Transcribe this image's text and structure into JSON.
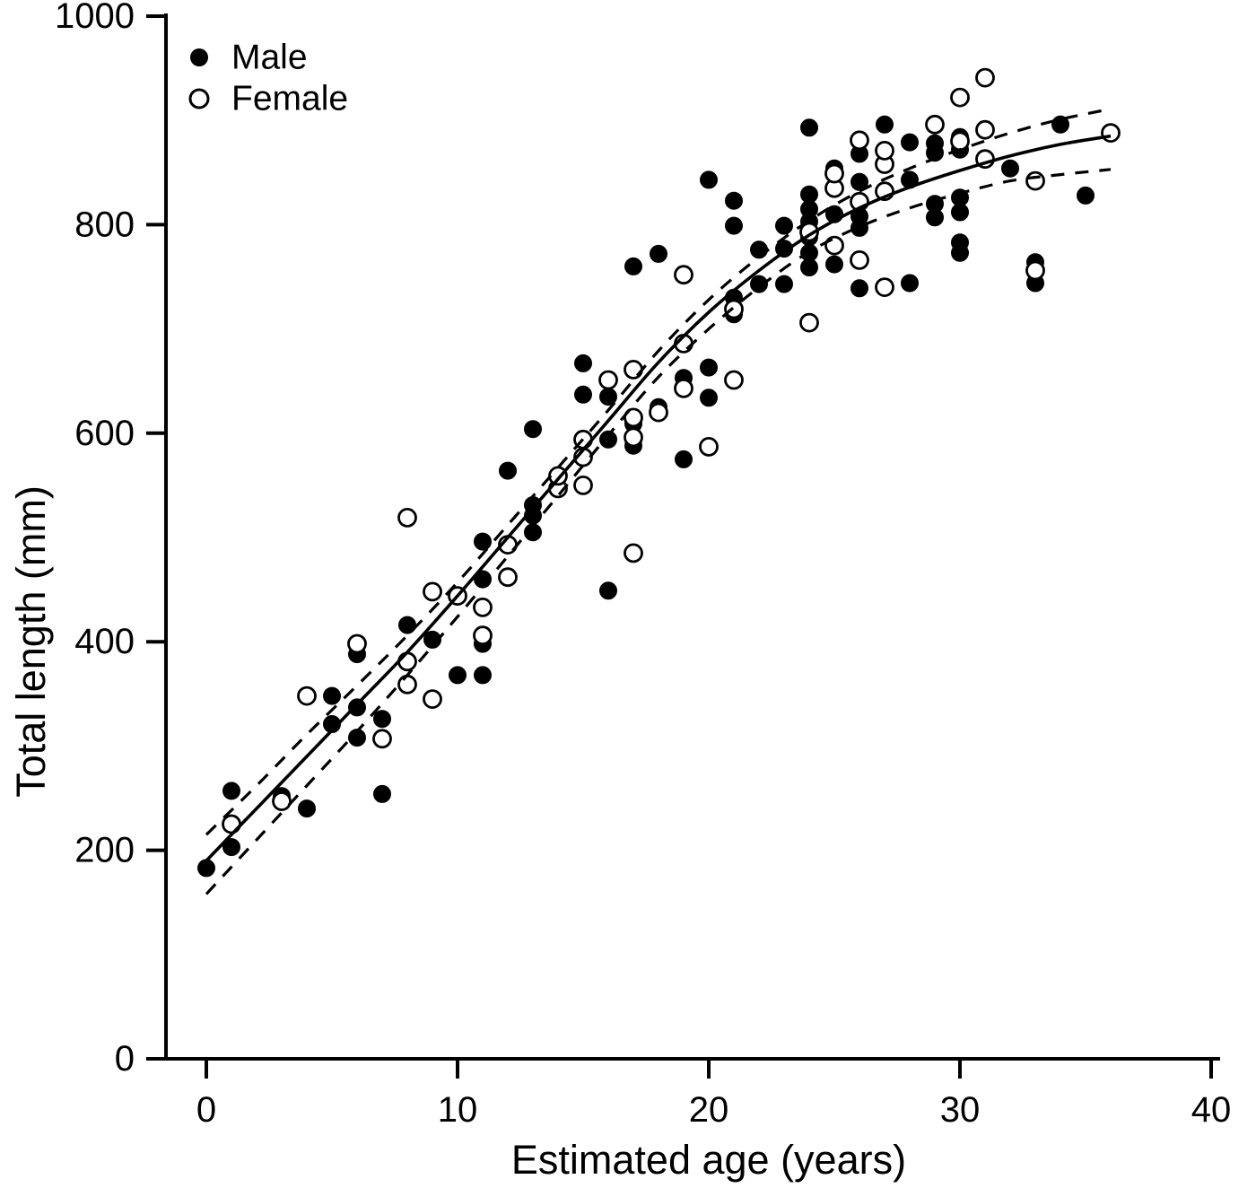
{
  "figure": {
    "background": "#ffffff",
    "ink": "#000000"
  },
  "legend": {
    "items": [
      {
        "label": "Male",
        "marker": "filled-circle"
      },
      {
        "label": "Female",
        "marker": "open-circle"
      }
    ]
  },
  "axes": {
    "x": {
      "label": "Estimated age (years)",
      "ticks": [
        "0",
        "10",
        "20",
        "30",
        "40"
      ],
      "range": [
        0,
        40
      ]
    },
    "y": {
      "label": "Total length (mm)",
      "ticks": [
        "0",
        "200",
        "400",
        "600",
        "800",
        "1000"
      ],
      "range": [
        0,
        1000
      ]
    }
  },
  "chart_data": {
    "type": "scatter",
    "title": "",
    "xlabel": "Estimated age (years)",
    "ylabel": "Total length (mm)",
    "xlim": [
      0,
      40
    ],
    "ylim": [
      0,
      1000
    ],
    "x_ticks": [
      0,
      10,
      20,
      30,
      40
    ],
    "y_ticks": [
      0,
      200,
      400,
      600,
      800,
      1000
    ],
    "grid": false,
    "legend_position": "top-left",
    "series": [
      {
        "name": "Male",
        "marker": "filled-circle",
        "points": [
          [
            0,
            183
          ],
          [
            1,
            203
          ],
          [
            1,
            257
          ],
          [
            3,
            252
          ],
          [
            4,
            240
          ],
          [
            5,
            321
          ],
          [
            5,
            348
          ],
          [
            6,
            308
          ],
          [
            6,
            337
          ],
          [
            6,
            388
          ],
          [
            7,
            254
          ],
          [
            7,
            326
          ],
          [
            8,
            416
          ],
          [
            9,
            402
          ],
          [
            10,
            368
          ],
          [
            11,
            368
          ],
          [
            11,
            398
          ],
          [
            11,
            460
          ],
          [
            11,
            496
          ],
          [
            12,
            564
          ],
          [
            13,
            505
          ],
          [
            13,
            521
          ],
          [
            13,
            531
          ],
          [
            13,
            604
          ],
          [
            15,
            637
          ],
          [
            15,
            667
          ],
          [
            16,
            449
          ],
          [
            16,
            594
          ],
          [
            16,
            635
          ],
          [
            17,
            588
          ],
          [
            17,
            609
          ],
          [
            17,
            760
          ],
          [
            18,
            625
          ],
          [
            18,
            772
          ],
          [
            19,
            575
          ],
          [
            19,
            653
          ],
          [
            20,
            634
          ],
          [
            20,
            663
          ],
          [
            20,
            843
          ],
          [
            21,
            714
          ],
          [
            21,
            730
          ],
          [
            21,
            799
          ],
          [
            21,
            823
          ],
          [
            22,
            743
          ],
          [
            22,
            776
          ],
          [
            23,
            743
          ],
          [
            23,
            777
          ],
          [
            23,
            799
          ],
          [
            24,
            759
          ],
          [
            24,
            773
          ],
          [
            24,
            788
          ],
          [
            24,
            803
          ],
          [
            24,
            815
          ],
          [
            24,
            829
          ],
          [
            24,
            893
          ],
          [
            25,
            762
          ],
          [
            25,
            810
          ],
          [
            25,
            854
          ],
          [
            26,
            739
          ],
          [
            26,
            797
          ],
          [
            26,
            808
          ],
          [
            26,
            841
          ],
          [
            26,
            868
          ],
          [
            27,
            896
          ],
          [
            28,
            744
          ],
          [
            28,
            843
          ],
          [
            28,
            879
          ],
          [
            29,
            807
          ],
          [
            29,
            820
          ],
          [
            29,
            869
          ],
          [
            29,
            878
          ],
          [
            30,
            773
          ],
          [
            30,
            783
          ],
          [
            30,
            812
          ],
          [
            30,
            826
          ],
          [
            30,
            872
          ],
          [
            30,
            884
          ],
          [
            32,
            854
          ],
          [
            33,
            744
          ],
          [
            33,
            764
          ],
          [
            34,
            896
          ],
          [
            35,
            828
          ]
        ]
      },
      {
        "name": "Female",
        "marker": "open-circle",
        "points": [
          [
            1,
            225
          ],
          [
            3,
            247
          ],
          [
            4,
            348
          ],
          [
            6,
            398
          ],
          [
            7,
            307
          ],
          [
            8,
            359
          ],
          [
            8,
            381
          ],
          [
            8,
            519
          ],
          [
            9,
            345
          ],
          [
            9,
            448
          ],
          [
            10,
            444
          ],
          [
            11,
            406
          ],
          [
            11,
            433
          ],
          [
            12,
            462
          ],
          [
            12,
            493
          ],
          [
            14,
            547
          ],
          [
            14,
            559
          ],
          [
            15,
            550
          ],
          [
            15,
            577
          ],
          [
            15,
            594
          ],
          [
            16,
            651
          ],
          [
            17,
            485
          ],
          [
            17,
            596
          ],
          [
            17,
            615
          ],
          [
            17,
            661
          ],
          [
            18,
            620
          ],
          [
            19,
            643
          ],
          [
            19,
            686
          ],
          [
            19,
            752
          ],
          [
            20,
            587
          ],
          [
            21,
            651
          ],
          [
            21,
            719
          ],
          [
            24,
            706
          ],
          [
            24,
            793
          ],
          [
            25,
            780
          ],
          [
            25,
            835
          ],
          [
            25,
            849
          ],
          [
            26,
            766
          ],
          [
            26,
            822
          ],
          [
            26,
            881
          ],
          [
            27,
            740
          ],
          [
            27,
            832
          ],
          [
            27,
            858
          ],
          [
            27,
            871
          ],
          [
            29,
            896
          ],
          [
            30,
            880
          ],
          [
            30,
            922
          ],
          [
            31,
            863
          ],
          [
            31,
            891
          ],
          [
            31,
            941
          ],
          [
            33,
            756
          ],
          [
            33,
            842
          ],
          [
            36,
            888
          ]
        ]
      }
    ],
    "fit_curve": {
      "name": "growth-curve",
      "style": "solid",
      "points": [
        [
          0,
          190
        ],
        [
          2,
          240
        ],
        [
          4,
          290
        ],
        [
          6,
          340
        ],
        [
          8,
          390
        ],
        [
          10,
          444
        ],
        [
          12,
          500
        ],
        [
          14,
          556
        ],
        [
          16,
          612
        ],
        [
          18,
          668
        ],
        [
          20,
          716
        ],
        [
          22,
          756
        ],
        [
          24,
          790
        ],
        [
          26,
          816
        ],
        [
          28,
          836
        ],
        [
          30,
          852
        ],
        [
          32,
          866
        ],
        [
          34,
          877
        ],
        [
          36,
          885
        ]
      ]
    },
    "confidence_bands": {
      "style": "dashed",
      "upper": [
        [
          0,
          215
        ],
        [
          2,
          262
        ],
        [
          4,
          311
        ],
        [
          6,
          358
        ],
        [
          8,
          406
        ],
        [
          10,
          457
        ],
        [
          12,
          512
        ],
        [
          14,
          567
        ],
        [
          16,
          622
        ],
        [
          18,
          679
        ],
        [
          20,
          728
        ],
        [
          22,
          769
        ],
        [
          24,
          804
        ],
        [
          26,
          832
        ],
        [
          28,
          854
        ],
        [
          30,
          872
        ],
        [
          32,
          888
        ],
        [
          34,
          901
        ],
        [
          36,
          911
        ]
      ],
      "lower": [
        [
          0,
          158
        ],
        [
          2,
          210
        ],
        [
          4,
          262
        ],
        [
          6,
          314
        ],
        [
          8,
          368
        ],
        [
          10,
          424
        ],
        [
          12,
          482
        ],
        [
          14,
          540
        ],
        [
          16,
          598
        ],
        [
          18,
          654
        ],
        [
          20,
          700
        ],
        [
          22,
          740
        ],
        [
          24,
          774
        ],
        [
          26,
          798
        ],
        [
          28,
          816
        ],
        [
          30,
          830
        ],
        [
          32,
          842
        ],
        [
          34,
          848
        ],
        [
          36,
          853
        ]
      ]
    }
  }
}
